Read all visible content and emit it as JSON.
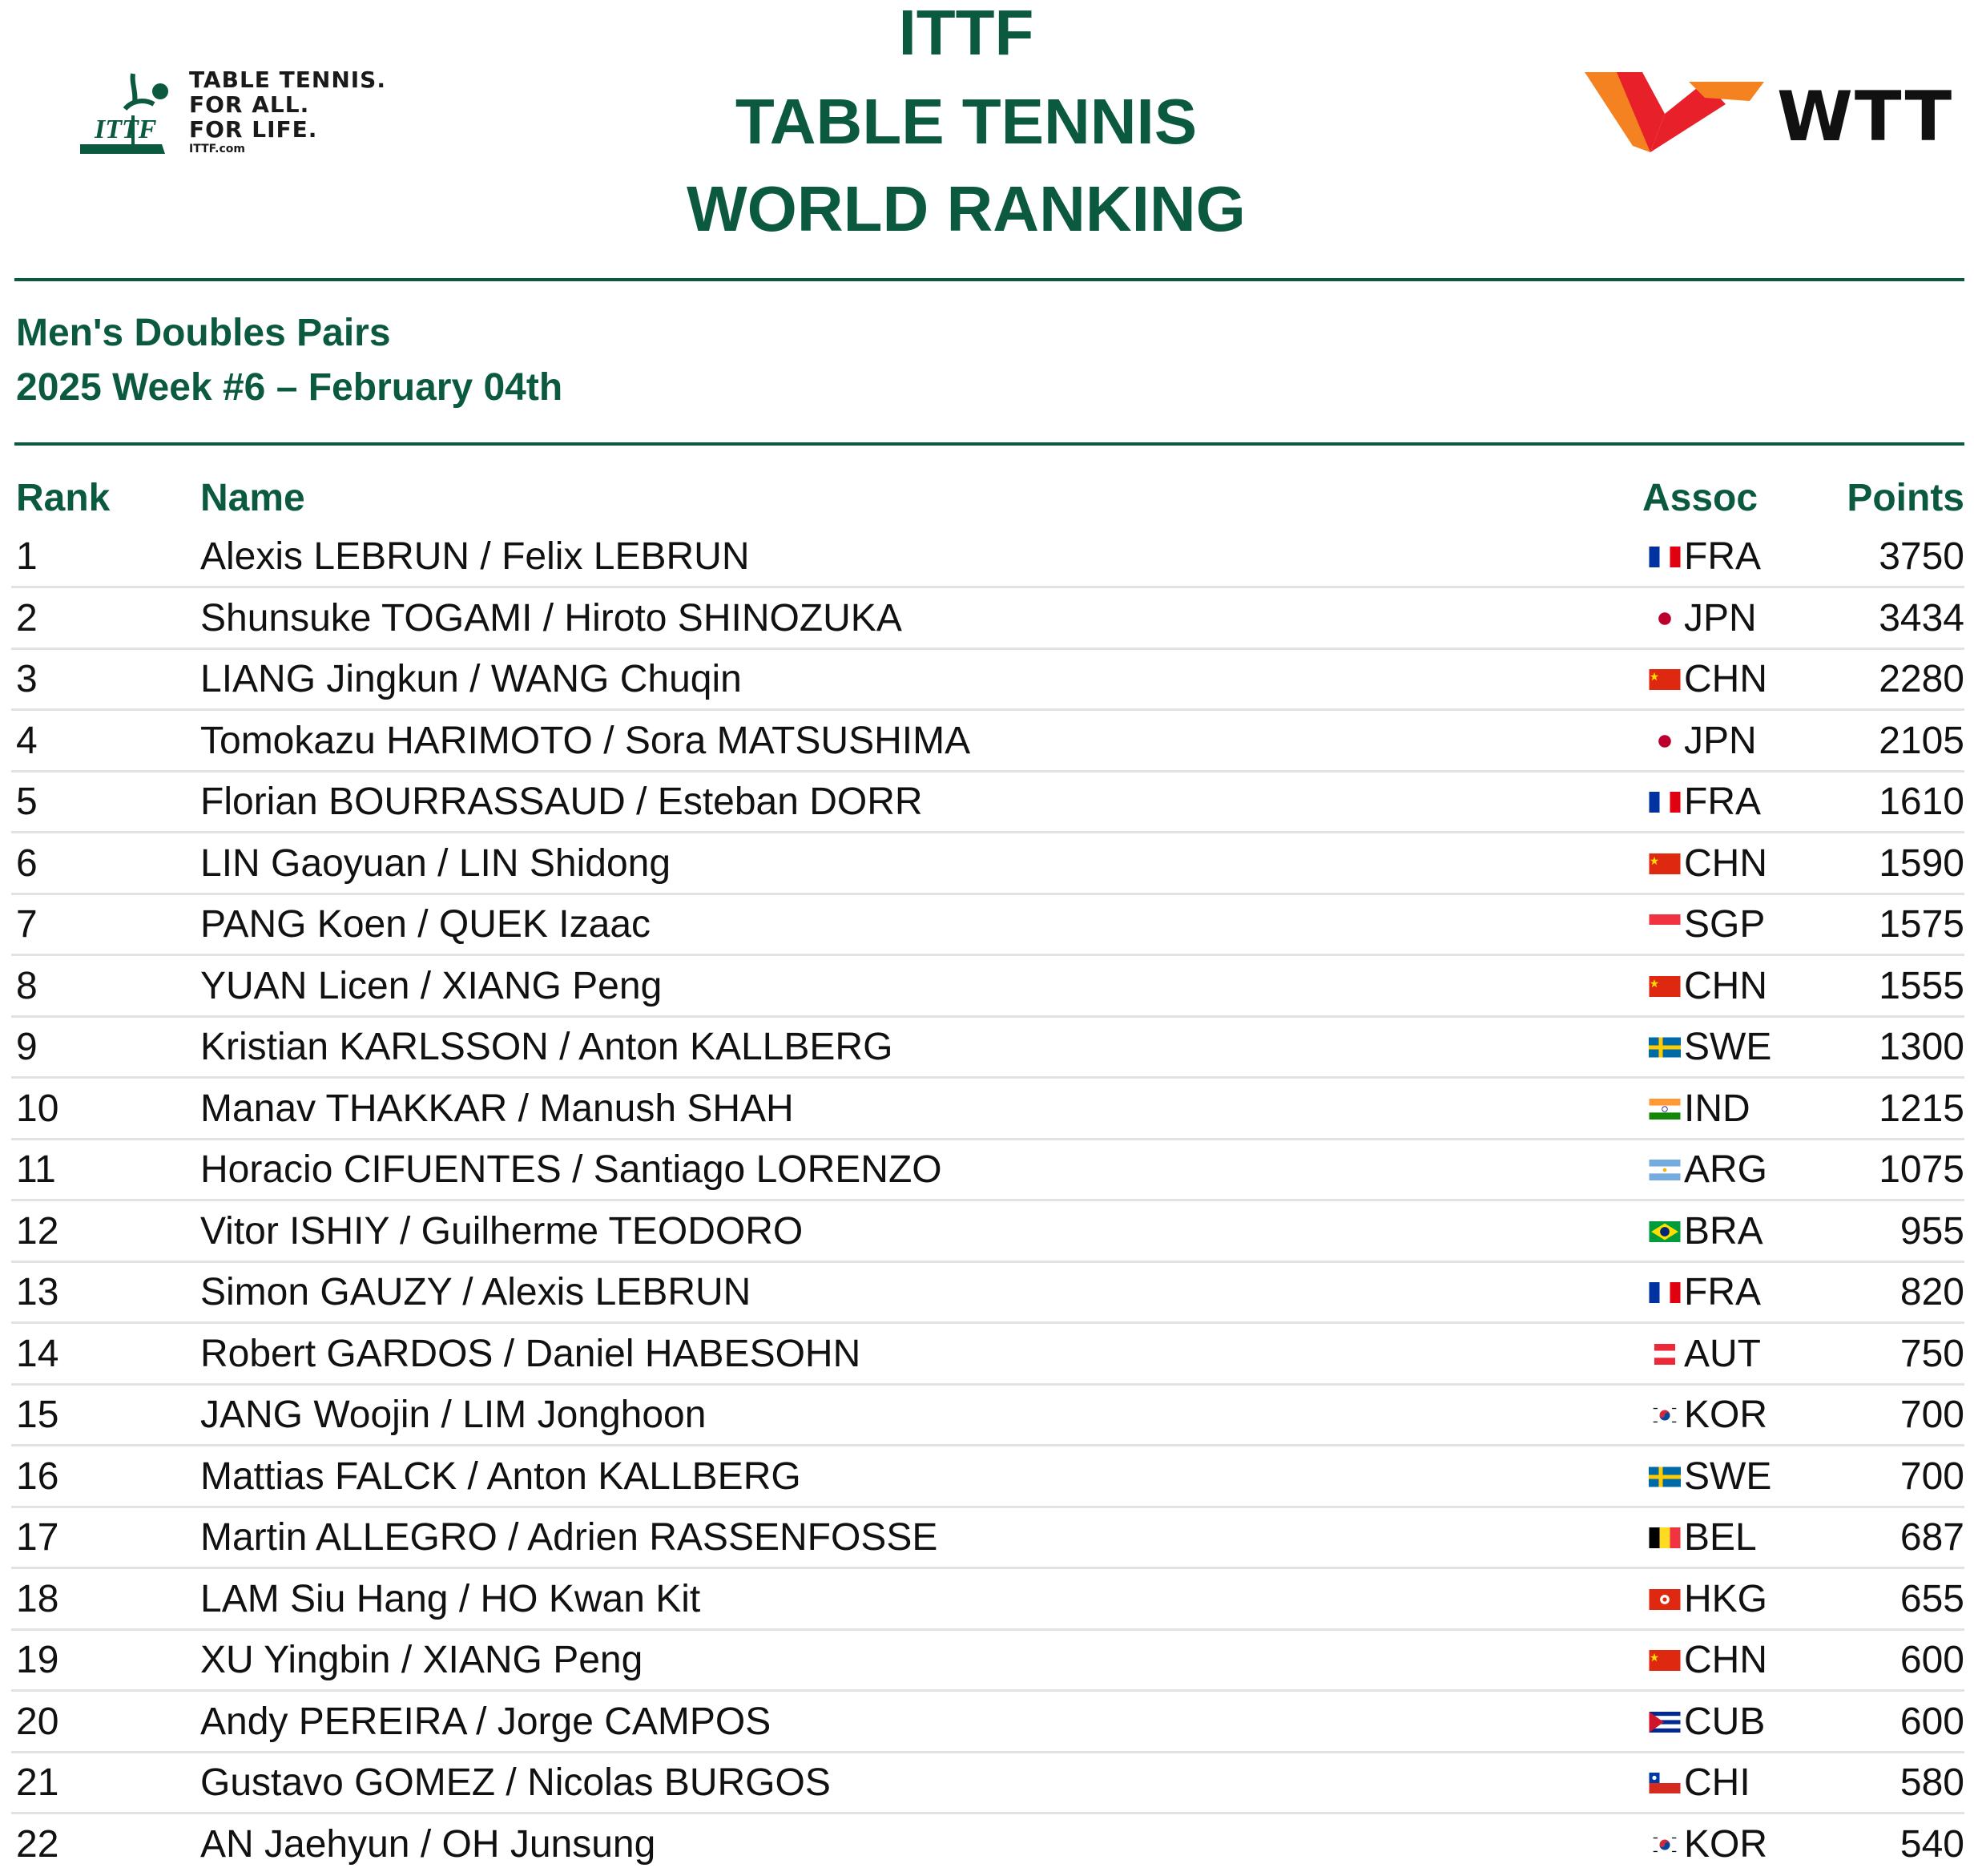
{
  "header": {
    "ittf_tagline": [
      "TABLE TENNIS.",
      "FOR ALL.",
      "FOR LIFE."
    ],
    "ittf_url": "ITTF.com",
    "ittf_logo_text": "ITTF",
    "title_lines": [
      "ITTF",
      "TABLE TENNIS",
      "WORLD RANKING"
    ],
    "wtt_text": "WTT"
  },
  "subtitle": {
    "category": "Men's Doubles Pairs",
    "week": "2025 Week #6 – February 04th"
  },
  "table": {
    "headers": {
      "rank": "Rank",
      "name": "Name",
      "assoc": "Assoc",
      "points": "Points"
    },
    "rows": [
      {
        "rank": "1",
        "name": "Alexis LEBRUN / Felix LEBRUN",
        "assoc": "FRA",
        "points": "3750",
        "flag": "fra-flag-icon"
      },
      {
        "rank": "2",
        "name": "Shunsuke TOGAMI / Hiroto SHINOZUKA",
        "assoc": "JPN",
        "points": "3434",
        "flag": "jpn-flag-icon"
      },
      {
        "rank": "3",
        "name": "LIANG Jingkun / WANG Chuqin",
        "assoc": "CHN",
        "points": "2280",
        "flag": "chn-flag-icon"
      },
      {
        "rank": "4",
        "name": "Tomokazu HARIMOTO / Sora MATSUSHIMA",
        "assoc": "JPN",
        "points": "2105",
        "flag": "jpn-flag-icon"
      },
      {
        "rank": "5",
        "name": "Florian BOURRASSAUD / Esteban DORR",
        "assoc": "FRA",
        "points": "1610",
        "flag": "fra-flag-icon"
      },
      {
        "rank": "6",
        "name": "LIN Gaoyuan / LIN Shidong",
        "assoc": "CHN",
        "points": "1590",
        "flag": "chn-flag-icon"
      },
      {
        "rank": "7",
        "name": "PANG Koen / QUEK Izaac",
        "assoc": "SGP",
        "points": "1575",
        "flag": "sgp-flag-icon"
      },
      {
        "rank": "8",
        "name": "YUAN Licen / XIANG Peng",
        "assoc": "CHN",
        "points": "1555",
        "flag": "chn-flag-icon"
      },
      {
        "rank": "9",
        "name": "Kristian KARLSSON / Anton KALLBERG",
        "assoc": "SWE",
        "points": "1300",
        "flag": "swe-flag-icon"
      },
      {
        "rank": "10",
        "name": "Manav THAKKAR / Manush SHAH",
        "assoc": "IND",
        "points": "1215",
        "flag": "ind-flag-icon"
      },
      {
        "rank": "11",
        "name": "Horacio CIFUENTES / Santiago LORENZO",
        "assoc": "ARG",
        "points": "1075",
        "flag": "arg-flag-icon"
      },
      {
        "rank": "12",
        "name": "Vitor ISHIY / Guilherme TEODORO",
        "assoc": "BRA",
        "points": "955",
        "flag": "bra-flag-icon"
      },
      {
        "rank": "13",
        "name": "Simon GAUZY / Alexis LEBRUN",
        "assoc": "FRA",
        "points": "820",
        "flag": "fra-flag-icon"
      },
      {
        "rank": "14",
        "name": "Robert GARDOS / Daniel HABESOHN",
        "assoc": "AUT",
        "points": "750",
        "flag": "aut-flag-icon"
      },
      {
        "rank": "15",
        "name": "JANG Woojin / LIM Jonghoon",
        "assoc": "KOR",
        "points": "700",
        "flag": "kor-flag-icon"
      },
      {
        "rank": "16",
        "name": "Mattias FALCK / Anton KALLBERG",
        "assoc": "SWE",
        "points": "700",
        "flag": "swe-flag-icon"
      },
      {
        "rank": "17",
        "name": "Martin ALLEGRO / Adrien RASSENFOSSE",
        "assoc": "BEL",
        "points": "687",
        "flag": "bel-flag-icon"
      },
      {
        "rank": "18",
        "name": "LAM Siu Hang / HO Kwan Kit",
        "assoc": "HKG",
        "points": "655",
        "flag": "hkg-flag-icon"
      },
      {
        "rank": "19",
        "name": "XU Yingbin / XIANG Peng",
        "assoc": "CHN",
        "points": "600",
        "flag": "chn-flag-icon"
      },
      {
        "rank": "20",
        "name": "Andy PEREIRA / Jorge CAMPOS",
        "assoc": "CUB",
        "points": "600",
        "flag": "cub-flag-icon"
      },
      {
        "rank": "21",
        "name": "Gustavo GOMEZ / Nicolas BURGOS",
        "assoc": "CHI",
        "points": "580",
        "flag": "chi-flag-icon"
      },
      {
        "rank": "22",
        "name": "AN Jaehyun / OH Junsung",
        "assoc": "KOR",
        "points": "540",
        "flag": "kor-flag-icon"
      }
    ]
  },
  "colors": {
    "brand_green": "#0b5a40",
    "row_separator": "#e2e2e2",
    "wtt_red": "#e8202a",
    "wtt_orange": "#f58220"
  }
}
